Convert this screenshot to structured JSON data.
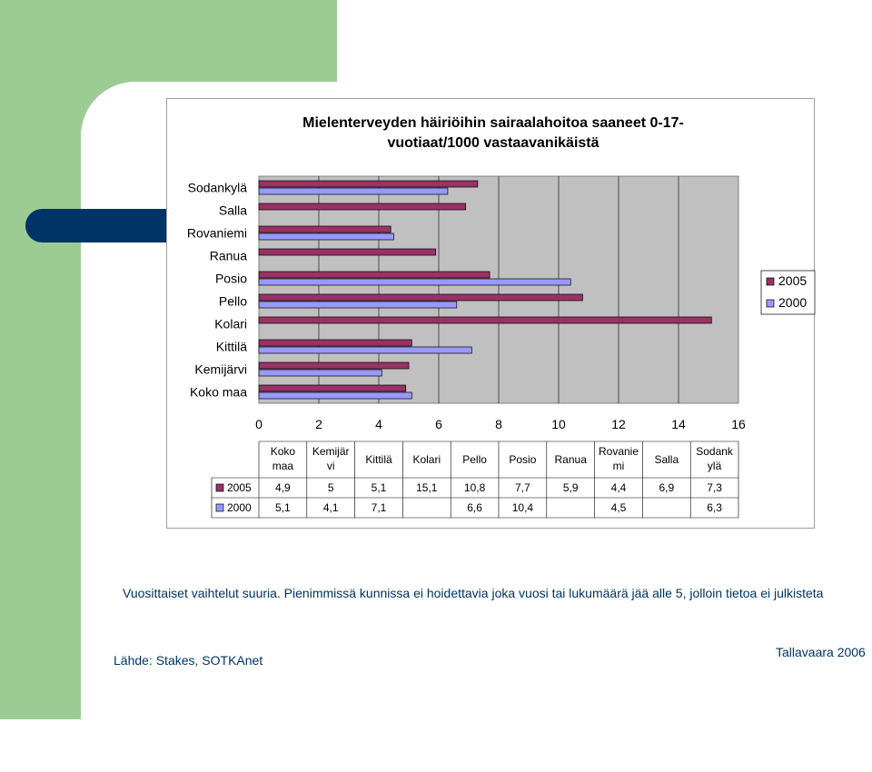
{
  "slide": {
    "note": "Vuosittaiset vaihtelut suuria. Pienimmissä kunnissa ei hoidettavia joka vuosi tai lukumäärä jää alle 5, jolloin tietoa ei julkisteta",
    "source": "Lähde: Stakes, SOTKAnet",
    "credit": "Tallavaara 2006"
  },
  "colors": {
    "bar_2005": "#993366",
    "bar_2000": "#9999ff",
    "plot_bg": "#c0c0c0",
    "accent_green": "#9ccc94",
    "accent_blue": "#003466"
  },
  "chart_data": {
    "type": "bar",
    "orientation": "horizontal",
    "title": "Mielenterveyden häiriöihin sairaalahoitoa saaneet 0-17-vuotiaat/1000 vastaavanikäistä",
    "title_lines": [
      "Mielenterveyden häiriöihin sairaalahoitoa saaneet 0-17-",
      "vuotiaat/1000 vastaavanikäistä"
    ],
    "categories": [
      "Koko maa",
      "Kemijärvi",
      "Kittilä",
      "Kolari",
      "Pello",
      "Posio",
      "Ranua",
      "Rovaniemi",
      "Salla",
      "Sodankylä"
    ],
    "table_headers": [
      [
        "Koko",
        "maa"
      ],
      [
        "Kemijär",
        "vi"
      ],
      [
        "Kittilä"
      ],
      [
        "Kolari"
      ],
      [
        "Pello"
      ],
      [
        "Posio"
      ],
      [
        "Ranua"
      ],
      [
        "Rovanie",
        "mi"
      ],
      [
        "Salla"
      ],
      [
        "Sodank",
        "ylä"
      ]
    ],
    "series": [
      {
        "name": "2005",
        "values": [
          4.9,
          5,
          5.1,
          15.1,
          10.8,
          7.7,
          5.9,
          4.4,
          6.9,
          7.3
        ],
        "labels": [
          "4,9",
          "5",
          "5,1",
          "15,1",
          "10,8",
          "7,7",
          "5,9",
          "4,4",
          "6,9",
          "7,3"
        ]
      },
      {
        "name": "2000",
        "values": [
          5.1,
          4.1,
          7.1,
          null,
          6.6,
          10.4,
          null,
          4.5,
          null,
          6.3
        ],
        "labels": [
          "5,1",
          "4,1",
          "7,1",
          "",
          "6,6",
          "10,4",
          "",
          "4,5",
          "",
          "6,3"
        ]
      }
    ],
    "xlim": [
      0,
      16
    ],
    "xticks": [
      "0",
      "2",
      "4",
      "6",
      "8",
      "10",
      "12",
      "14",
      "16"
    ],
    "grid": true,
    "legend": "right",
    "data_table": true
  }
}
